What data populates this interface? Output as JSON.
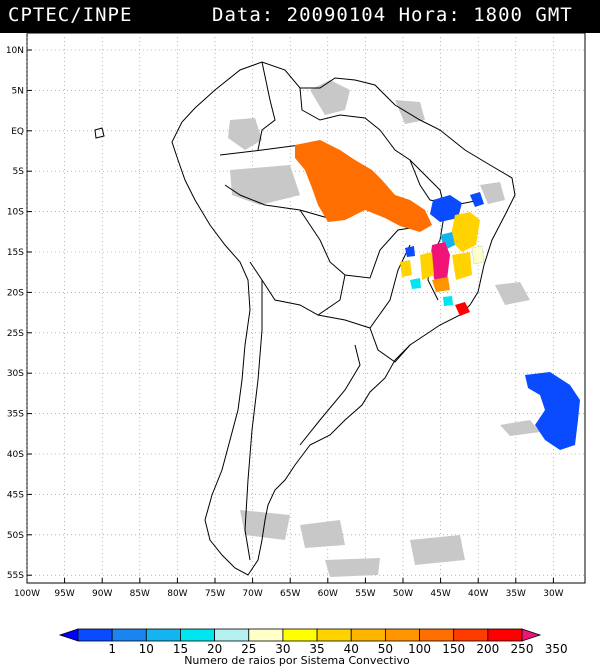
{
  "header": {
    "left": "CPTEC/INPE",
    "right": "Data: 20090104 Hora: 1800 GMT"
  },
  "axes": {
    "lat_labels": [
      "10N",
      "5N",
      "EQ",
      "5S",
      "10S",
      "15S",
      "20S",
      "25S",
      "30S",
      "35S",
      "40S",
      "45S",
      "50S",
      "55S"
    ],
    "lon_labels": [
      "100W",
      "95W",
      "90W",
      "85W",
      "80W",
      "75W",
      "70W",
      "65W",
      "60W",
      "55W",
      "50W",
      "45W",
      "40W",
      "35W",
      "30W"
    ],
    "grid": "dotted"
  },
  "colorbar": {
    "labels": [
      "1",
      "10",
      "15",
      "20",
      "25",
      "30",
      "35",
      "40",
      "50",
      "100",
      "150",
      "200",
      "250",
      "350"
    ],
    "colors": [
      "#0000ff",
      "#0a4bff",
      "#1a84f0",
      "#14b4f0",
      "#00e6f0",
      "#b4f0f0",
      "#ffffc8",
      "#ffff00",
      "#ffd200",
      "#ffb400",
      "#ff9600",
      "#ff6e00",
      "#ff3c00",
      "#ff0000",
      "#f01478"
    ],
    "title": "Numero de raios por Sistema Convectivo"
  },
  "map_colors": {
    "land_outline": "#000000",
    "satellite_cloud": "#c8c8c8"
  }
}
